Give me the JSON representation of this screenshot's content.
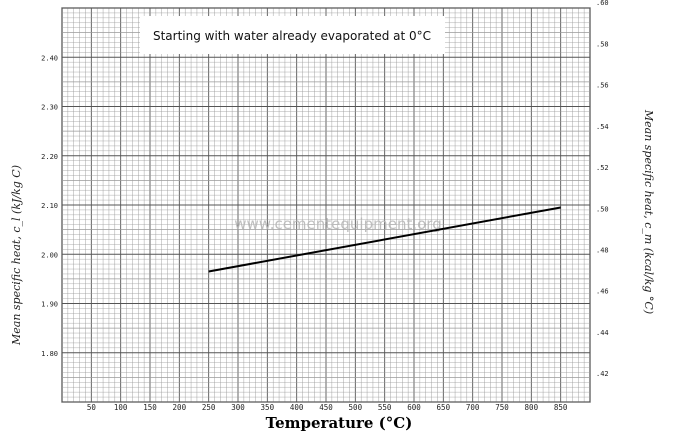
{
  "chart_data": {
    "type": "line",
    "title": "Starting with water already evaporated at 0°C",
    "watermark": "www.cementequipment.org",
    "xlabel": "Temperature (°C)",
    "ylabel_left": "Mean specific heat, c_l  (kJ/kg C)",
    "ylabel_right": "Mean specific heat, c_m  (kcal/kg °C)",
    "x_ticks": [
      50,
      100,
      150,
      200,
      250,
      300,
      350,
      400,
      450,
      500,
      550,
      600,
      650,
      700,
      750,
      800,
      850
    ],
    "y_left_ticks": [
      "1.80",
      "1.90",
      "2.00",
      "2.10",
      "2.20",
      "2.30",
      "2.40"
    ],
    "y_right_ticks": [
      ".42",
      ".44",
      ".46",
      ".48",
      ".50",
      ".52",
      ".54",
      ".56",
      ".58",
      ".60"
    ],
    "xlim": [
      0,
      900
    ],
    "ylim_left": [
      1.7,
      2.5
    ],
    "grid": true,
    "series": [
      {
        "x": [
          250,
          850
        ],
        "y": [
          1.965,
          2.095
        ]
      }
    ]
  },
  "colors": {
    "line": "#000000",
    "grid_major": "#555555",
    "grid_minor": "#9a9a9a",
    "watermark": "#b8b8b8"
  }
}
